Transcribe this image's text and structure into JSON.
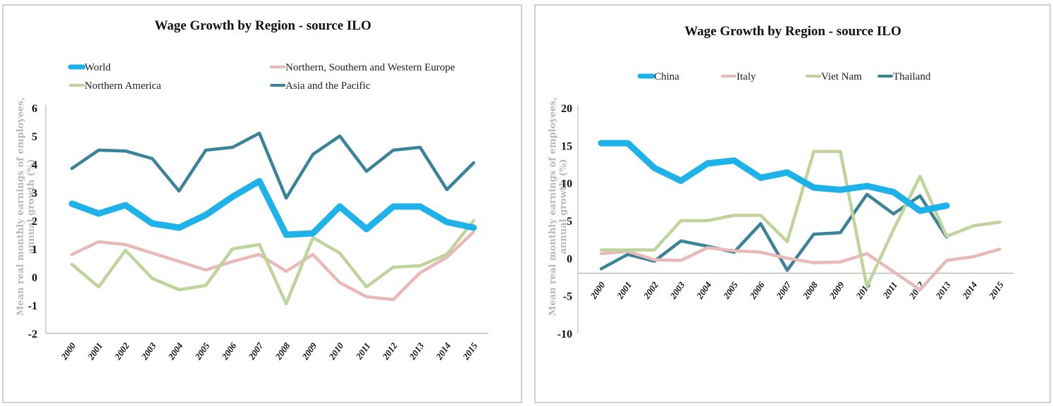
{
  "chart_data": [
    {
      "type": "line",
      "title": "Wage Growth by Region - source ILO",
      "ylabel": "Mean real monthly earnings of employees, annual growth (%)",
      "ylabel_lines": [
        "Mean real monthly earnings of employees,",
        "annual growth (%)"
      ],
      "xlabel": "",
      "ylim": [
        -2,
        6
      ],
      "yticks": [
        "6",
        "5",
        "4",
        "3",
        "2",
        "1",
        "0",
        "-1",
        "-2"
      ],
      "ytick_values": [
        6,
        5,
        4,
        3,
        2,
        1,
        0,
        -1,
        -2
      ],
      "x": [
        "2000",
        "2001",
        "2002",
        "2003",
        "2004",
        "2005",
        "2006",
        "2007",
        "2008",
        "2009",
        "2010",
        "2011",
        "2012",
        "2013",
        "2014",
        "2015"
      ],
      "grid": false,
      "legend": "top",
      "series": [
        {
          "name": "World",
          "color": "#1db2ea",
          "weight": "thick",
          "values": [
            2.6,
            2.25,
            2.55,
            1.9,
            1.75,
            2.2,
            2.85,
            3.4,
            1.5,
            1.55,
            2.5,
            1.7,
            2.5,
            2.5,
            1.95,
            1.75
          ]
        },
        {
          "name": "Northern, Southern and Western Europe",
          "color": "#e8b9b8",
          "weight": "normal",
          "values": [
            0.8,
            1.25,
            1.15,
            0.85,
            0.55,
            0.25,
            0.55,
            0.8,
            0.2,
            0.8,
            -0.2,
            -0.7,
            -0.8,
            0.15,
            0.7,
            1.6
          ]
        },
        {
          "name": "Northern America",
          "color": "#bfd49a",
          "weight": "normal",
          "values": [
            0.45,
            -0.35,
            0.95,
            -0.05,
            -0.45,
            -0.3,
            1.0,
            1.15,
            -0.95,
            1.4,
            0.85,
            -0.35,
            0.35,
            0.4,
            0.8,
            2.0
          ]
        },
        {
          "name": "Asia and the Pacific",
          "color": "#3a8499",
          "weight": "normal",
          "values": [
            3.85,
            4.5,
            4.47,
            4.2,
            3.05,
            4.5,
            4.6,
            5.1,
            2.8,
            4.35,
            5.0,
            3.75,
            4.5,
            4.6,
            3.1,
            4.05
          ]
        }
      ]
    },
    {
      "type": "line",
      "title": "Wage Growth by Region - source ILO",
      "ylabel": "Mean real monthly earnings of employees, annual growth (%)",
      "ylabel_lines": [
        "Mean real monthly earnings of employees,",
        "annual growth (%)"
      ],
      "xlabel": "",
      "ylim": [
        -10,
        20
      ],
      "yticks": [
        "20",
        "15",
        "10",
        "5",
        "0",
        "-5",
        "-10"
      ],
      "ytick_values": [
        20,
        15,
        10,
        5,
        0,
        -5,
        -10
      ],
      "x_axis_crosses_at": -2,
      "x": [
        "2000",
        "2001",
        "2002",
        "2003",
        "2004",
        "2005",
        "2006",
        "2007",
        "2008",
        "2009",
        "2010",
        "2011",
        "2012",
        "2013",
        "2014",
        "2015"
      ],
      "grid": false,
      "legend": "top",
      "series": [
        {
          "name": "China",
          "color": "#1db2ea",
          "weight": "thick",
          "values": [
            15.3,
            15.3,
            12.0,
            10.3,
            12.6,
            13.0,
            10.7,
            11.4,
            9.4,
            9.1,
            9.6,
            8.8,
            6.3,
            7.0,
            null,
            null
          ]
        },
        {
          "name": "Italy",
          "color": "#e8b9b8",
          "weight": "normal",
          "values": [
            0.6,
            0.9,
            -0.2,
            -0.3,
            1.4,
            1.0,
            0.8,
            0.0,
            -0.6,
            -0.5,
            0.6,
            -1.8,
            -4.2,
            -0.3,
            0.2,
            1.2
          ]
        },
        {
          "name": "Viet Nam",
          "color": "#bfd49a",
          "weight": "normal",
          "values": [
            1.1,
            1.1,
            1.1,
            5.0,
            5.0,
            5.7,
            5.7,
            2.2,
            14.2,
            14.2,
            -3.8,
            3.8,
            10.9,
            2.9,
            4.3,
            4.8
          ]
        },
        {
          "name": "Thailand",
          "color": "#3a8499",
          "weight": "normal",
          "values": [
            -1.4,
            0.5,
            -0.4,
            2.3,
            1.6,
            0.8,
            4.6,
            -1.6,
            3.2,
            3.4,
            8.5,
            5.9,
            8.3,
            2.8,
            null,
            null
          ]
        }
      ]
    }
  ]
}
